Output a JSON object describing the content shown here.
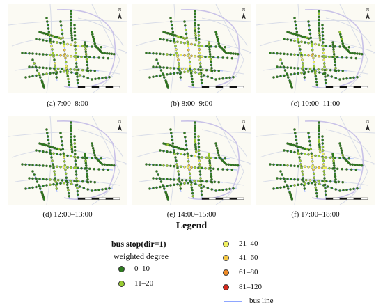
{
  "panels": [
    {
      "caption": "(a) 7:00–8:00",
      "intensity": 0.55
    },
    {
      "caption": "(b) 8:00–9:00",
      "intensity": 0.6
    },
    {
      "caption": "(c) 10:00–11:00",
      "intensity": 0.45
    },
    {
      "caption": "(d) 12:00–13:00",
      "intensity": 0.35
    },
    {
      "caption": "(e) 14:00–15:00",
      "intensity": 0.4
    },
    {
      "caption": "(f) 17:00–18:00",
      "intensity": 0.5
    }
  ],
  "map": {
    "north_label": "N"
  },
  "legend": {
    "title": "Legend",
    "heading": "bus stop(dir=1)",
    "subheading": "weighted degree",
    "classes": [
      {
        "label": "0–10",
        "color": "#2e7d1f"
      },
      {
        "label": "11–20",
        "color": "#9acd32"
      },
      {
        "label": "21–40",
        "color": "#f0f060"
      },
      {
        "label": "41–60",
        "color": "#f5c842"
      },
      {
        "label": "61–80",
        "color": "#f08a24"
      },
      {
        "label": "81–120",
        "color": "#d8281c"
      }
    ],
    "bus_line_label": "bus line",
    "bus_line_color": "#8ea6ff"
  }
}
